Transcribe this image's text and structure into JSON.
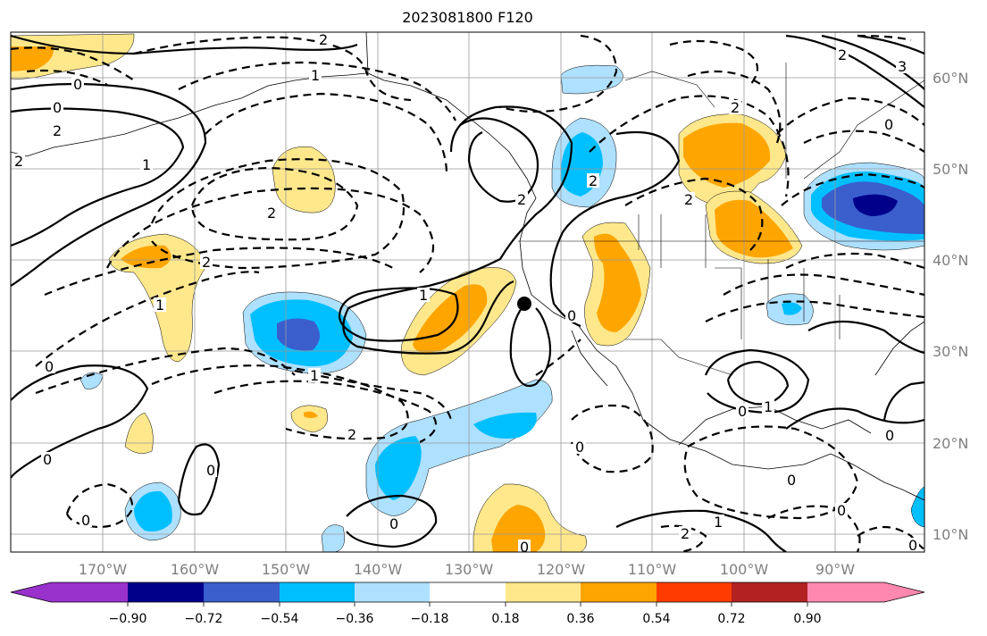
{
  "title": "2023081800 F120",
  "lon_labels": [
    "170°W",
    "160°W",
    "150°W",
    "140°W",
    "130°W",
    "120°W",
    "110°W",
    "100°W",
    "90°W"
  ],
  "lat_labels": [
    "60°N",
    "50°N",
    "40°N",
    "30°N",
    "20°N",
    "10°N"
  ],
  "colorbar": {
    "ticks": [
      "−0.90",
      "−0.72",
      "−0.54",
      "−0.36",
      "−0.18",
      "0.18",
      "0.36",
      "0.54",
      "0.72",
      "0.90"
    ],
    "colors": [
      "#9932cc",
      "#00008b",
      "#3a5fcd",
      "#00bfff",
      "#aee0ff",
      "#ffffff",
      "#ffe88c",
      "#ffa500",
      "#ff3c00",
      "#b22222",
      "#ff88b0"
    ]
  },
  "contour_labels": [
    "2",
    "0",
    "0",
    "2",
    "1",
    "2",
    "2",
    "1",
    "0",
    "0",
    "1",
    "1",
    "2",
    "0",
    "0",
    "1",
    "2",
    "2",
    "0",
    "0",
    "0",
    "2",
    "2",
    "0",
    "0",
    "1",
    "0",
    "0",
    "2",
    "1",
    "0",
    "0",
    "2",
    "0",
    "3",
    "2"
  ],
  "marker": "storm-center-dot"
}
